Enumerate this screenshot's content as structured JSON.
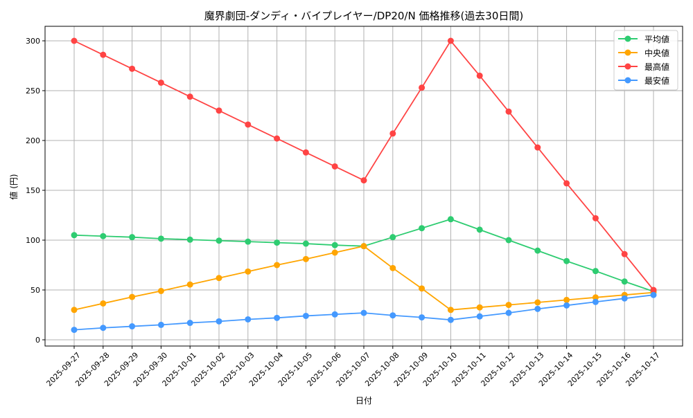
{
  "chart_data": {
    "type": "line",
    "title": "魔界劇団-ダンディ・バイプレイヤー/DP20/N 価格推移(過去30日間)",
    "xlabel": "日付",
    "ylabel": "値 (円)",
    "ylim": [
      -15,
      315
    ],
    "yticks": [
      0,
      50,
      100,
      150,
      200,
      250,
      300
    ],
    "grid": true,
    "legend": "top-right",
    "x": [
      "2025-09-27",
      "2025-09-28",
      "2025-09-29",
      "2025-09-30",
      "2025-10-01",
      "2025-10-02",
      "2025-10-03",
      "2025-10-04",
      "2025-10-05",
      "2025-10-06",
      "2025-10-07",
      "2025-10-08",
      "2025-10-09",
      "2025-10-10",
      "2025-10-11",
      "2025-10-12",
      "2025-10-13",
      "2025-10-14",
      "2025-10-15",
      "2025-10-16",
      "2025-10-17"
    ],
    "series": [
      {
        "name": "平均値",
        "color": "#2ecc71",
        "values": [
          105,
          104,
          103,
          101.5,
          100.5,
          99.5,
          98.5,
          97.5,
          96.5,
          95,
          94,
          103,
          112,
          121,
          110.5,
          100,
          89.5,
          79,
          69,
          58.5,
          48.5
        ]
      },
      {
        "name": "中央値",
        "color": "#ffa500",
        "values": [
          30,
          36.5,
          43,
          49,
          55.5,
          62,
          68.5,
          75,
          81,
          87.5,
          94,
          72,
          51.5,
          30,
          32.5,
          35,
          37.5,
          40,
          42.5,
          45,
          47.5
        ]
      },
      {
        "name": "最高値",
        "color": "#ff4444",
        "values": [
          300,
          286,
          272,
          258,
          244,
          230,
          216,
          202,
          188,
          174,
          160,
          207,
          253,
          300,
          265,
          229,
          193,
          157,
          122,
          86,
          50
        ]
      },
      {
        "name": "最安値",
        "color": "#4499ff",
        "values": [
          10,
          12,
          13.5,
          15,
          17,
          18.5,
          20.5,
          22,
          24,
          25.5,
          27,
          24.5,
          22.5,
          20,
          23.5,
          27,
          31,
          34.5,
          38,
          41.5,
          45
        ]
      }
    ]
  }
}
